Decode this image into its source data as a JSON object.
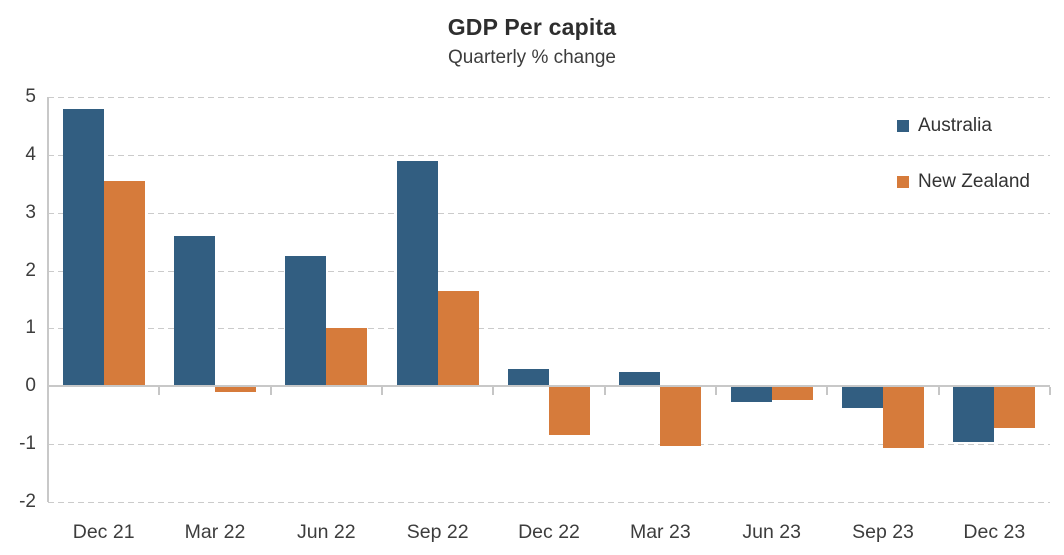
{
  "header": {
    "title": "GDP Per capita",
    "subtitle": "Quarterly % change"
  },
  "colors": {
    "australia": "#325E81",
    "new_zealand": "#D67B3B",
    "gridline": "#cbcbcb",
    "zero_line": "#c8c8c8",
    "axis_line": "#c8c8c8",
    "label_text": "#3d3d3d",
    "title_text": "#2e2e2e"
  },
  "legend": {
    "entries": [
      {
        "label": "Australia",
        "color": "#325E81"
      },
      {
        "label": "New Zealand",
        "color": "#D67B3B"
      }
    ],
    "position": "top-right-inside"
  },
  "chart_data": {
    "type": "bar",
    "title": "GDP Per capita",
    "subtitle": "Quarterly % change",
    "categories": [
      "Dec 21",
      "Mar 22",
      "Jun 22",
      "Sep 22",
      "Dec 22",
      "Mar 23",
      "Jun 23",
      "Sep 23",
      "Dec 23"
    ],
    "series": [
      {
        "name": "Australia",
        "color": "#325E81",
        "values": [
          4.8,
          2.6,
          2.25,
          3.9,
          0.3,
          0.25,
          -0.28,
          -0.38,
          -0.97
        ]
      },
      {
        "name": "New Zealand",
        "color": "#D67B3B",
        "values": [
          3.55,
          -0.1,
          1.0,
          1.65,
          -0.85,
          -1.03,
          -0.24,
          -1.07,
          -0.72
        ]
      }
    ],
    "xlabel": "",
    "ylabel": "",
    "ylim": [
      -2,
      5
    ],
    "yticks": [
      5,
      4,
      3,
      2,
      1,
      0,
      -1,
      -2
    ],
    "grid": "horizontal-dashed",
    "legend_position": "top-right inside plot"
  }
}
